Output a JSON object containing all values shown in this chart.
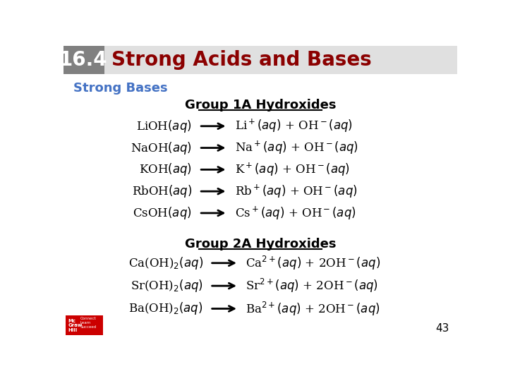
{
  "slide_number": "43",
  "header_box_color": "#808080",
  "header_num": "16.4",
  "header_num_color": "#ffffff",
  "header_title": "Strong Acids and Bases",
  "header_title_color": "#8B0000",
  "section_title": "Strong Bases",
  "section_title_color": "#4472C4",
  "group1_title": "Group 1A Hydroxides",
  "group2_title": "Group 2A Hydroxides",
  "group_title_color": "#000000",
  "background_color": "#ffffff",
  "header_bg_color": "#e0e0e0",
  "group1_left": [
    "LiOH$(aq)$",
    "NaOH$(aq)$",
    "KOH$(aq)$",
    "RbOH$(aq)$",
    "CsOH$(aq)$"
  ],
  "group1_right": [
    "Li$^+$$(aq)$ + OH$^-$$(aq)$",
    "Na$^+$$(aq)$ + OH$^-$$(aq)$",
    "K$^+$$(aq)$ + OH$^-$$(aq)$",
    "Rb$^+$$(aq)$ + OH$^-$$(aq)$",
    "Cs$^+$$(aq)$ + OH$^-$$(aq)$"
  ],
  "group2_left": [
    "Ca(OH)$_2$$(aq)$",
    "Sr(OH)$_2$$(aq)$",
    "Ba(OH)$_2$$(aq)$"
  ],
  "group2_right": [
    "Ca$^{2+}$$(aq)$ + 2OH$^-$$(aq)$",
    "Sr$^{2+}$$(aq)$ + 2OH$^-$$(aq)$",
    "Ba$^{2+}$$(aq)$ + 2OH$^-$$(aq)$"
  ]
}
